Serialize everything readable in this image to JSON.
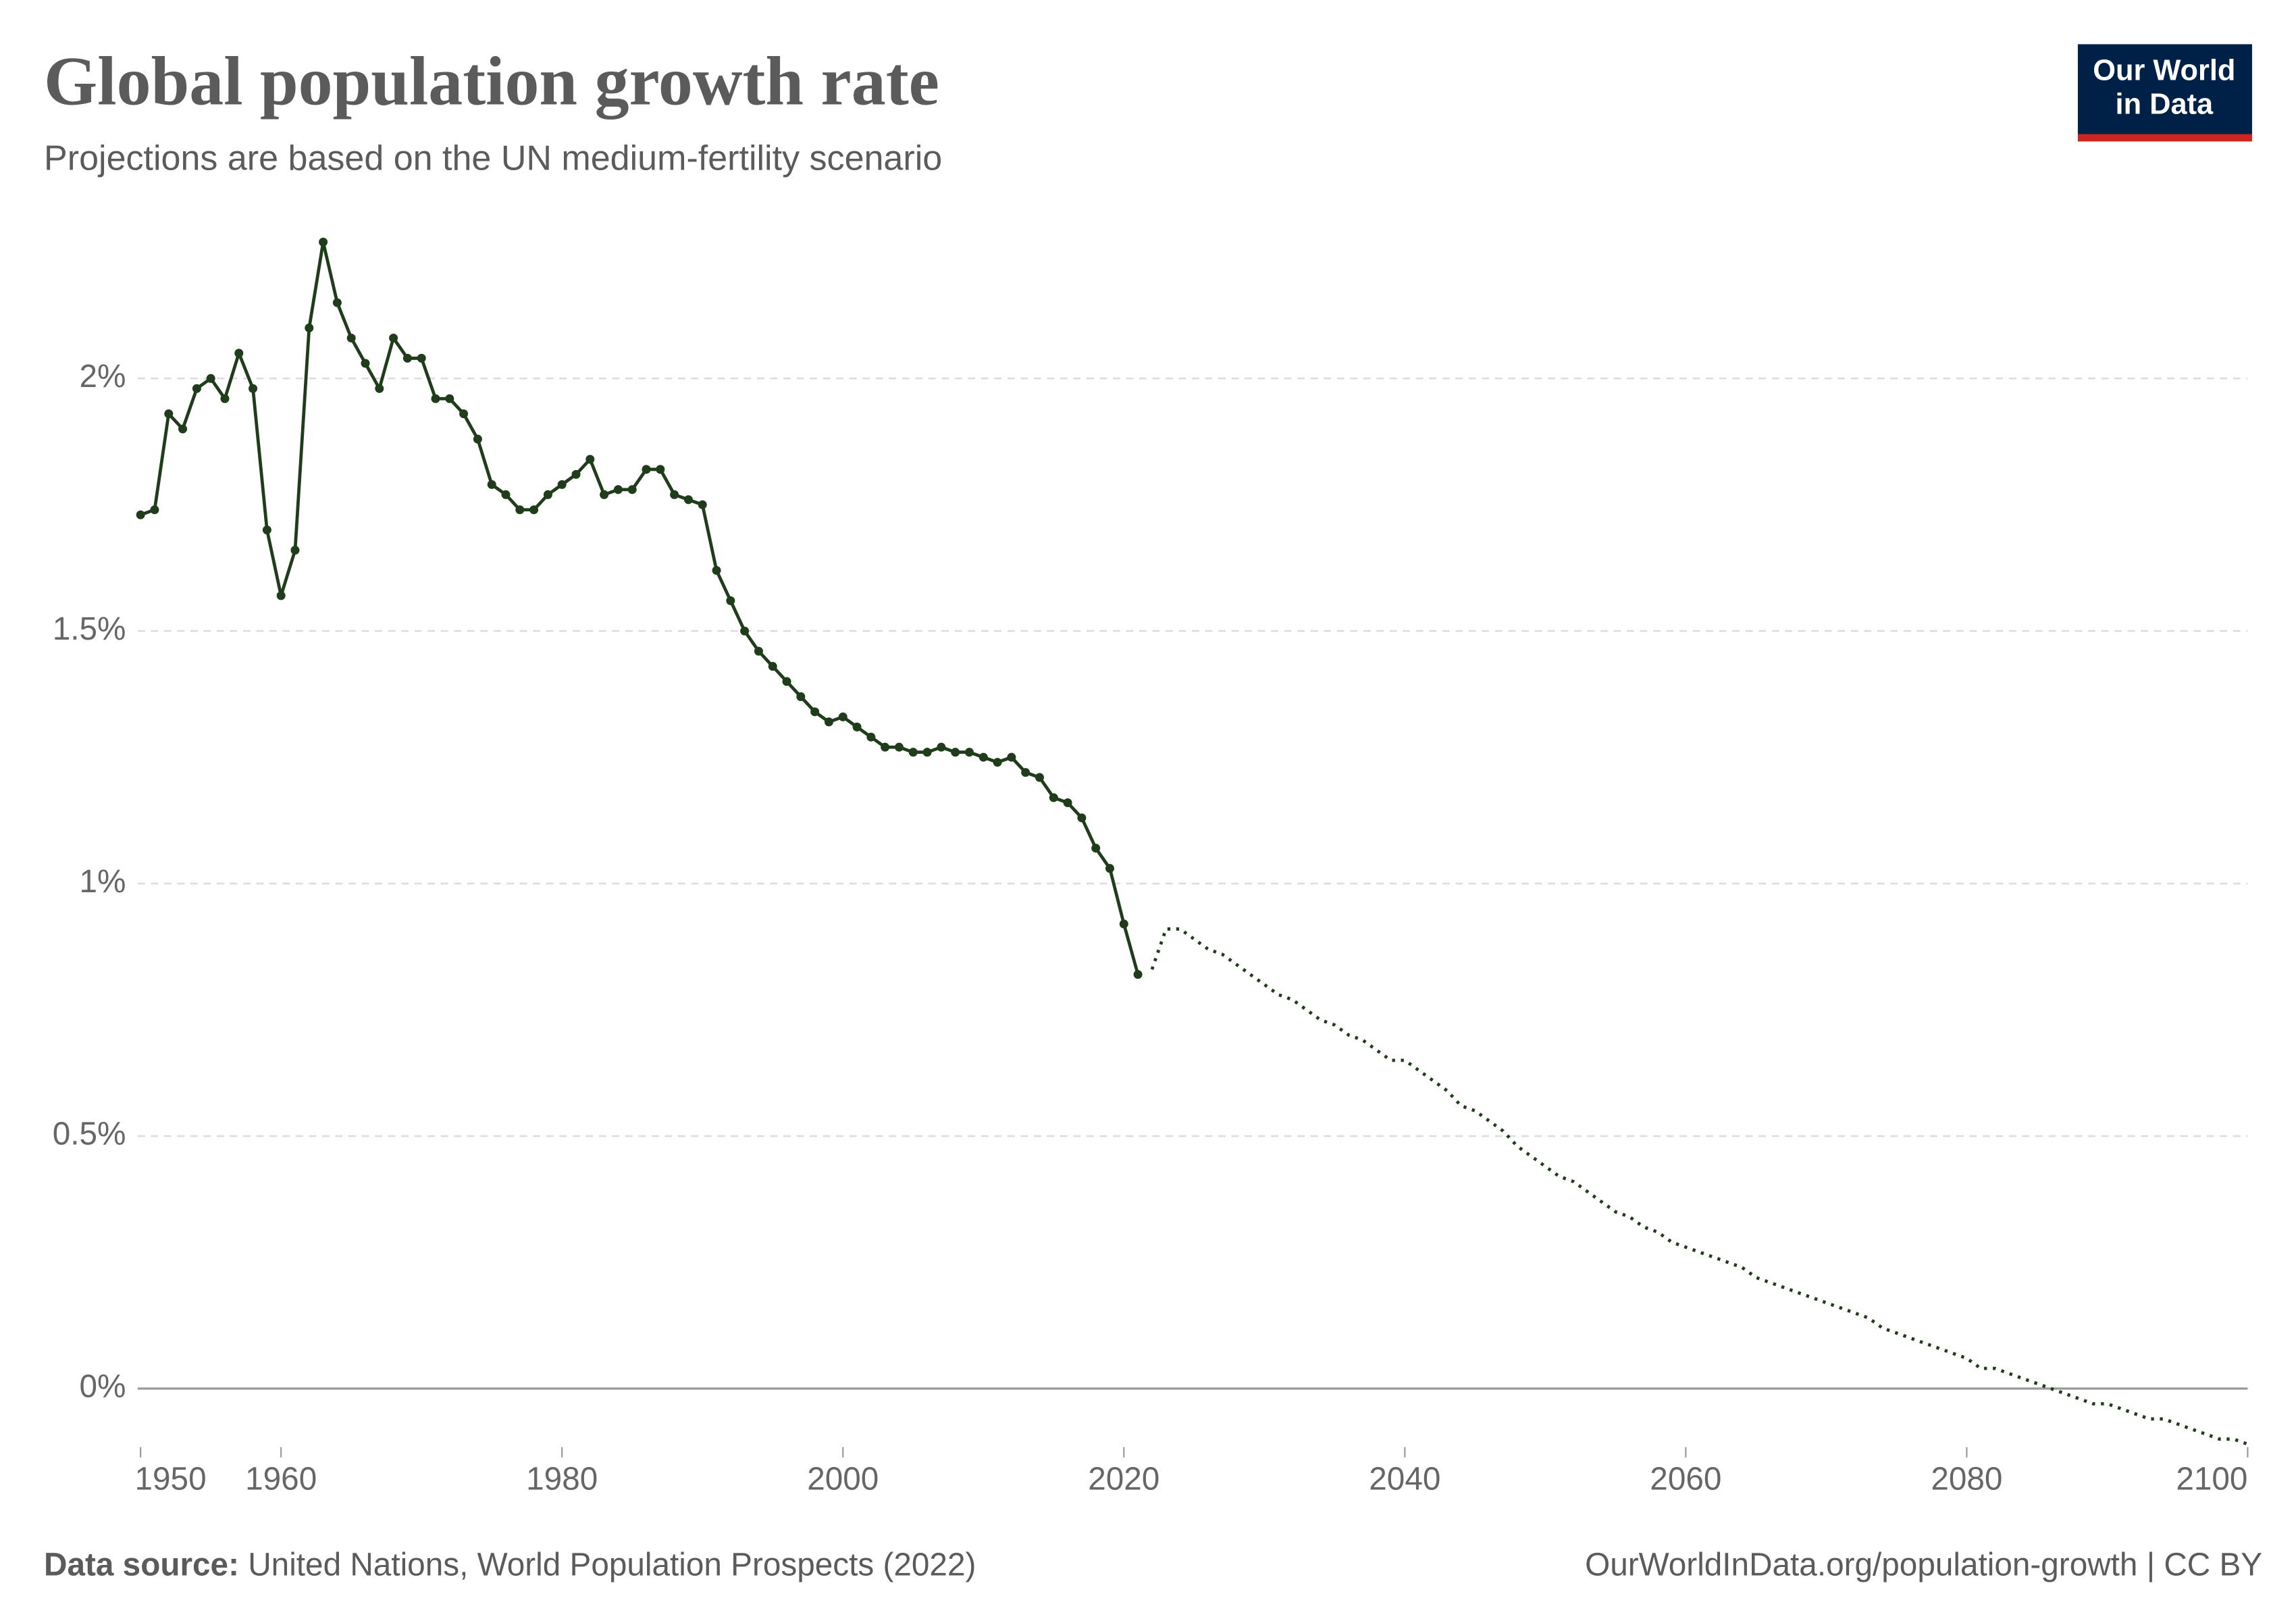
{
  "header": {
    "logo": [
      "Our World",
      "in Data"
    ]
  },
  "chart_data": {
    "type": "line",
    "title": "Global population growth rate",
    "subtitle": "Projections are based on the UN medium-fertility scenario",
    "source_label": "Data source:",
    "source": "United Nations, World Population Prospects (2022)",
    "url": "OurWorldInData.org/population-growth",
    "license": "| CC BY",
    "xlim": [
      1950,
      2100
    ],
    "xticks": [
      1950,
      1960,
      1980,
      2000,
      2020,
      2040,
      2060,
      2080,
      2100
    ],
    "ylim": [
      -0.11,
      2.3
    ],
    "yticks": [
      {
        "value": 0,
        "label": "0%"
      },
      {
        "value": 0.5,
        "label": "0.5%"
      },
      {
        "value": 1,
        "label": "1%"
      },
      {
        "value": 1.5,
        "label": "1.5%"
      },
      {
        "value": 2,
        "label": "2%"
      }
    ],
    "grid": true,
    "series": [
      {
        "color": "#1f3d1b",
        "style": "solid",
        "markers": true,
        "x": [
          1950,
          1951,
          1952,
          1953,
          1954,
          1955,
          1956,
          1957,
          1958,
          1959,
          1960,
          1961,
          1962,
          1963,
          1964,
          1965,
          1966,
          1967,
          1968,
          1969,
          1970,
          1971,
          1972,
          1973,
          1974,
          1975,
          1976,
          1977,
          1978,
          1979,
          1980,
          1981,
          1982,
          1983,
          1984,
          1985,
          1986,
          1987,
          1988,
          1989,
          1990,
          1991,
          1992,
          1993,
          1994,
          1995,
          1996,
          1997,
          1998,
          1999,
          2000,
          2001,
          2002,
          2003,
          2004,
          2005,
          2006,
          2007,
          2008,
          2009,
          2010,
          2011,
          2012,
          2013,
          2014,
          2015,
          2016,
          2017,
          2018,
          2019,
          2020,
          2021
        ],
        "values": [
          1.73,
          1.74,
          1.93,
          1.9,
          1.98,
          2.0,
          1.96,
          2.05,
          1.98,
          1.7,
          1.57,
          1.66,
          2.1,
          2.27,
          2.15,
          2.08,
          2.03,
          1.98,
          2.08,
          2.04,
          2.04,
          1.96,
          1.96,
          1.93,
          1.88,
          1.79,
          1.77,
          1.74,
          1.74,
          1.77,
          1.79,
          1.81,
          1.84,
          1.77,
          1.78,
          1.78,
          1.82,
          1.82,
          1.77,
          1.76,
          1.75,
          1.62,
          1.56,
          1.5,
          1.46,
          1.43,
          1.4,
          1.37,
          1.34,
          1.32,
          1.33,
          1.31,
          1.29,
          1.27,
          1.27,
          1.26,
          1.26,
          1.27,
          1.26,
          1.26,
          1.25,
          1.24,
          1.25,
          1.22,
          1.21,
          1.17,
          1.16,
          1.13,
          1.07,
          1.03,
          0.92,
          0.82
        ]
      },
      {
        "color": "#1f3d1b",
        "style": "dotted",
        "markers": false,
        "x": [
          2022,
          2023,
          2024,
          2025,
          2026,
          2027,
          2028,
          2029,
          2030,
          2031,
          2032,
          2033,
          2034,
          2035,
          2036,
          2037,
          2038,
          2039,
          2040,
          2041,
          2042,
          2043,
          2044,
          2045,
          2046,
          2047,
          2048,
          2049,
          2050,
          2051,
          2052,
          2053,
          2054,
          2055,
          2056,
          2057,
          2058,
          2059,
          2060,
          2061,
          2062,
          2063,
          2064,
          2065,
          2066,
          2067,
          2068,
          2069,
          2070,
          2071,
          2072,
          2073,
          2074,
          2075,
          2076,
          2077,
          2078,
          2079,
          2080,
          2081,
          2082,
          2083,
          2084,
          2085,
          2086,
          2087,
          2088,
          2089,
          2090,
          2091,
          2092,
          2093,
          2094,
          2095,
          2096,
          2097,
          2098,
          2099,
          2100
        ],
        "values": [
          0.83,
          0.91,
          0.91,
          0.89,
          0.87,
          0.86,
          0.84,
          0.82,
          0.8,
          0.78,
          0.77,
          0.75,
          0.73,
          0.72,
          0.7,
          0.69,
          0.67,
          0.65,
          0.65,
          0.63,
          0.61,
          0.59,
          0.56,
          0.55,
          0.53,
          0.51,
          0.48,
          0.46,
          0.44,
          0.42,
          0.41,
          0.39,
          0.37,
          0.35,
          0.34,
          0.32,
          0.31,
          0.29,
          0.28,
          0.27,
          0.26,
          0.25,
          0.24,
          0.22,
          0.21,
          0.2,
          0.19,
          0.18,
          0.17,
          0.16,
          0.15,
          0.14,
          0.12,
          0.11,
          0.1,
          0.09,
          0.08,
          0.07,
          0.06,
          0.04,
          0.04,
          0.03,
          0.02,
          0.01,
          0.0,
          -0.01,
          -0.02,
          -0.03,
          -0.03,
          -0.04,
          -0.05,
          -0.06,
          -0.06,
          -0.07,
          -0.08,
          -0.09,
          -0.1,
          -0.1,
          -0.11
        ]
      }
    ]
  }
}
